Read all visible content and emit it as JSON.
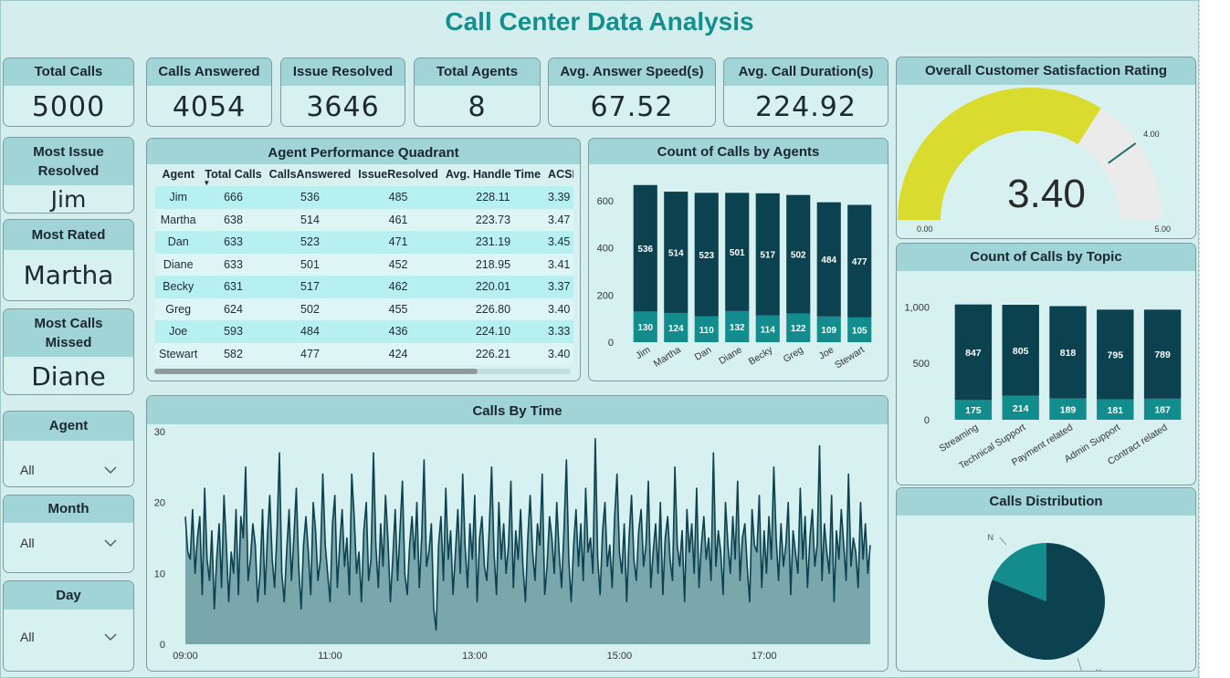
{
  "title": "Call Center Data Analysis",
  "kpis": [
    {
      "label": "Total Calls",
      "value": "5000"
    },
    {
      "label": "Calls Answered",
      "value": "4054"
    },
    {
      "label": "Issue Resolved",
      "value": "3646"
    },
    {
      "label": "Total Agents",
      "value": "8"
    },
    {
      "label": "Avg. Answer Speed(s)",
      "value": "67.52"
    },
    {
      "label": "Avg. Call Duration(s)",
      "value": "224.92"
    }
  ],
  "highlights": [
    {
      "label": "Most Issue Resolved",
      "value": "Jim"
    },
    {
      "label": "Most Rated",
      "value": "Martha"
    },
    {
      "label": "Most Calls Missed",
      "value": "Diane"
    }
  ],
  "slicers": [
    {
      "label": "Agent",
      "selected": "All"
    },
    {
      "label": "Month",
      "selected": "All"
    },
    {
      "label": "Day",
      "selected": "All"
    }
  ],
  "table": {
    "title": "Agent Performance Quadrant",
    "columns": [
      "Agent",
      "Total Calls",
      "CallsAnswered",
      "IssueResolved",
      "Avg. Handle Time",
      "ACSF"
    ],
    "rows": [
      [
        "Jim",
        "666",
        "536",
        "485",
        "228.11",
        "3.39"
      ],
      [
        "Martha",
        "638",
        "514",
        "461",
        "223.73",
        "3.47"
      ],
      [
        "Dan",
        "633",
        "523",
        "471",
        "231.19",
        "3.45"
      ],
      [
        "Diane",
        "633",
        "501",
        "452",
        "218.95",
        "3.41"
      ],
      [
        "Becky",
        "631",
        "517",
        "462",
        "220.01",
        "3.37"
      ],
      [
        "Greg",
        "624",
        "502",
        "455",
        "226.80",
        "3.40"
      ],
      [
        "Joe",
        "593",
        "484",
        "436",
        "224.10",
        "3.33"
      ],
      [
        "Stewart",
        "582",
        "477",
        "424",
        "226.21",
        "3.40"
      ]
    ]
  },
  "colors": {
    "dark": "#0c414f",
    "teal": "#128c8c",
    "gauge_fill": "#dadb2f",
    "gauge_bg": "#ebebeb",
    "title": "#148f8f",
    "header": "#a0d4d6"
  },
  "chart_data": [
    {
      "type": "bar",
      "title": "Count of Calls by Agents",
      "categories": [
        "Jim",
        "Martha",
        "Dan",
        "Diane",
        "Becky",
        "Greg",
        "Joe",
        "Stewart"
      ],
      "series": [
        {
          "name": "Y",
          "values": [
            536,
            514,
            523,
            501,
            517,
            502,
            484,
            477
          ]
        },
        {
          "name": "N",
          "values": [
            130,
            124,
            110,
            132,
            114,
            122,
            109,
            105
          ]
        }
      ],
      "yticks": [
        "0",
        "200",
        "400",
        "600"
      ],
      "ylim": [
        0,
        700
      ]
    },
    {
      "type": "gauge",
      "title": "Overall Customer Satisfaction Rating",
      "value": 3.4,
      "value_label": "3.40",
      "min": 0,
      "max": 5,
      "target": 4,
      "min_label": "0.00",
      "max_label": "5.00",
      "target_label": "4.00"
    },
    {
      "type": "bar",
      "title": "Count of Calls by Topic",
      "categories": [
        "Streaming",
        "Technical Support",
        "Payment related",
        "Admin Support",
        "Contract related"
      ],
      "series": [
        {
          "name": "Y",
          "values": [
            847,
            805,
            818,
            795,
            789
          ]
        },
        {
          "name": "N",
          "values": [
            175,
            214,
            189,
            181,
            187
          ]
        }
      ],
      "yticks": [
        "0",
        "500",
        "1,000"
      ],
      "ylim": [
        0,
        1100
      ]
    },
    {
      "type": "area",
      "title": "Calls By Time",
      "xticks": [
        "09:00",
        "11:00",
        "13:00",
        "15:00",
        "17:00"
      ],
      "yticks": [
        "0",
        "10",
        "20",
        "30"
      ],
      "ylim": [
        0,
        30
      ],
      "x_start_min": 540,
      "x_step_min": 2,
      "values": [
        18,
        13,
        12,
        19,
        10,
        15,
        18,
        7,
        22,
        12,
        9,
        16,
        5,
        12,
        17,
        8,
        21,
        14,
        6,
        13,
        10,
        19,
        7,
        18,
        15,
        25,
        9,
        12,
        17,
        14,
        6,
        10,
        19,
        7,
        15,
        21,
        12,
        8,
        16,
        27,
        10,
        6,
        13,
        19,
        9,
        15,
        22,
        11,
        5,
        14,
        18,
        13,
        7,
        20,
        16,
        9,
        12,
        24,
        14,
        10,
        6,
        17,
        21,
        8,
        14,
        19,
        11,
        15,
        7,
        24,
        18,
        10,
        13,
        6,
        16,
        20,
        9,
        12,
        27,
        14,
        8,
        17,
        11,
        21,
        15,
        6,
        12,
        19,
        9,
        16,
        23,
        10,
        7,
        14,
        18,
        12,
        20,
        8,
        15,
        26,
        11,
        13,
        17,
        5,
        2,
        14,
        18,
        9,
        22,
        12,
        16,
        7,
        13,
        19,
        10,
        24,
        14,
        8,
        17,
        12,
        21,
        6,
        15,
        18,
        11,
        9,
        16,
        25,
        13,
        7,
        20,
        12,
        17,
        10,
        14,
        23,
        8,
        16,
        12,
        19,
        11,
        6,
        15,
        21,
        13,
        9,
        17,
        14,
        24,
        7,
        11,
        18,
        15,
        10,
        20,
        13,
        8,
        16,
        26,
        12,
        6,
        14,
        19,
        11,
        17,
        9,
        22,
        13,
        15,
        10,
        29,
        12,
        7,
        16,
        20,
        11,
        14,
        8,
        18,
        24,
        13,
        10,
        17,
        6,
        15,
        21,
        12,
        9,
        16,
        19,
        11,
        14,
        23,
        8,
        13,
        17,
        10,
        20,
        7,
        15,
        18,
        12,
        9,
        25,
        14,
        11,
        16,
        6,
        19,
        13,
        17,
        10,
        22,
        8,
        14,
        18,
        12,
        15,
        9,
        27,
        11,
        16,
        13,
        7,
        20,
        14,
        10,
        18,
        12,
        23,
        9,
        15,
        17,
        11,
        6,
        19,
        14,
        13,
        21,
        8,
        16,
        10,
        18,
        12,
        25,
        15,
        9,
        17,
        11,
        14,
        20,
        7,
        16,
        13,
        10,
        22,
        12,
        18,
        8,
        15,
        19,
        11,
        14,
        28,
        9,
        17,
        13,
        10,
        21,
        6,
        16,
        12,
        19,
        14,
        9,
        24,
        11,
        15,
        13,
        8,
        20,
        12,
        17,
        10,
        14
      ]
    },
    {
      "type": "pie",
      "title": "Calls Distribution",
      "labels": [
        "N",
        "Y"
      ],
      "values": [
        946,
        4054
      ]
    }
  ]
}
